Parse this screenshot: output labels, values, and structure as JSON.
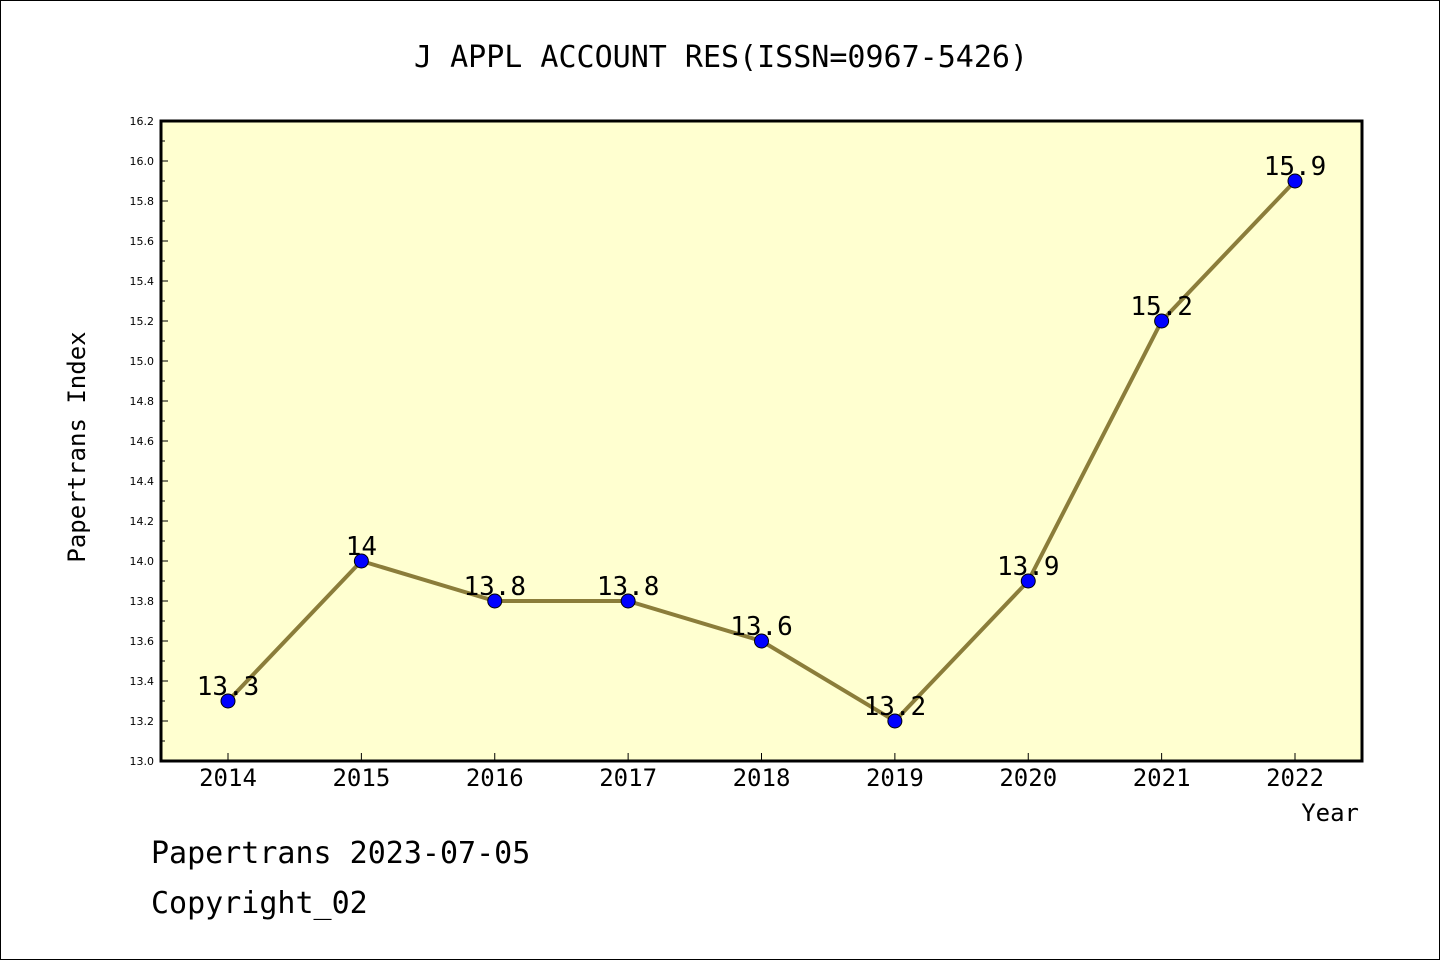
{
  "chart_data": {
    "type": "line",
    "title": "J APPL ACCOUNT RES(ISSN=0967-5426)",
    "xlabel": "Year",
    "ylabel": "Papertrans Index",
    "categories": [
      "2014",
      "2015",
      "2016",
      "2017",
      "2018",
      "2019",
      "2020",
      "2021",
      "2022"
    ],
    "series": [
      {
        "values": [
          13.3,
          14.0,
          13.8,
          13.8,
          13.6,
          13.2,
          13.9,
          15.2,
          15.9
        ],
        "labels": [
          "13.3",
          "14",
          "13.8",
          "13.8",
          "13.6",
          "13.2",
          "13.9",
          "15.2",
          "15.9"
        ]
      }
    ],
    "ylim": [
      13.0,
      16.2
    ],
    "yticks": [
      "13.0",
      "13.2",
      "13.4",
      "13.6",
      "13.8",
      "14.0",
      "14.2",
      "14.4",
      "14.6",
      "14.8",
      "15.0",
      "15.2",
      "15.4",
      "15.6",
      "15.8",
      "16.0",
      "16.2"
    ],
    "grid": false,
    "colors": {
      "plot_background": "#ffffd0",
      "line": "#8b7d3a",
      "marker": "#0000ff"
    }
  },
  "footer": {
    "line1": "Papertrans 2023-07-05",
    "line2": "Copyright_02"
  }
}
